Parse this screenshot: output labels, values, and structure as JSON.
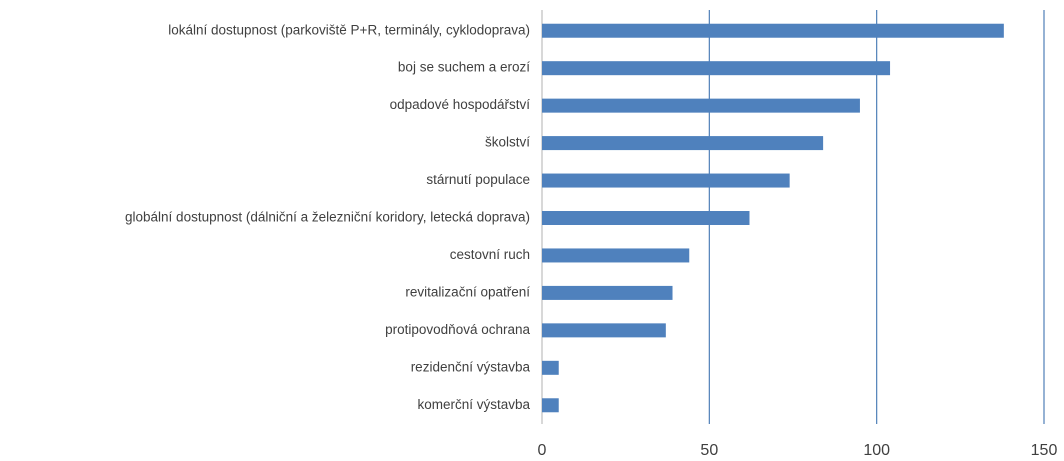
{
  "chart_data": {
    "type": "bar",
    "orientation": "horizontal",
    "categories": [
      "lokální dostupnost (parkoviště P+R, terminály, cyklodoprava)",
      "boj se suchem a erozí",
      "odpadové hospodářství",
      "školství",
      "stárnutí populace",
      "globální dostupnost (dálniční a železniční koridory, letecká doprava)",
      "cestovní ruch",
      "revitalizační opatření",
      "protipovodňová ochrana",
      "rezidenční výstavba",
      "komerční výstavba"
    ],
    "values": [
      138,
      104,
      95,
      84,
      74,
      62,
      44,
      39,
      37,
      5,
      5
    ],
    "color": "#4f81bd",
    "xlim": [
      0,
      150
    ],
    "xticks": [
      0,
      50,
      100,
      150
    ],
    "grid": true
  }
}
